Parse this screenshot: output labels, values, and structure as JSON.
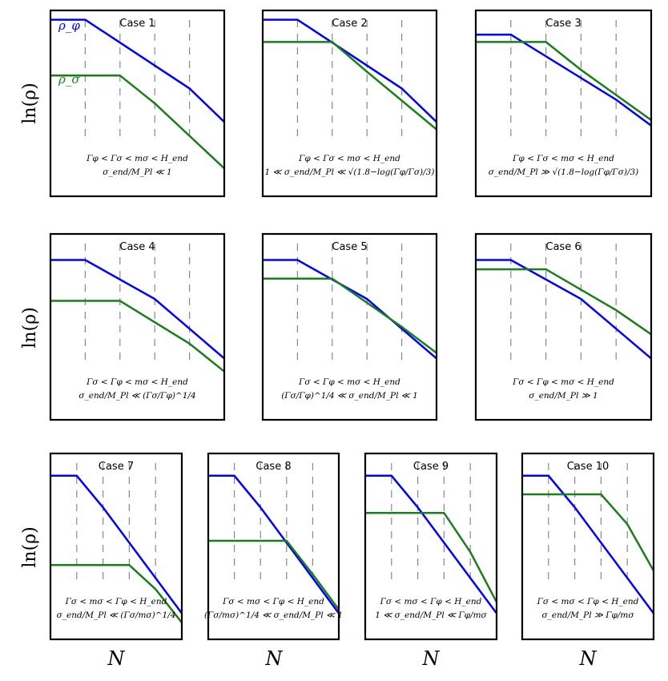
{
  "figure": {
    "y_axis_label": "ln(ρ)",
    "x_axis_label": "N",
    "series_colors": {
      "rho_phi": "#0000ff",
      "rho_sigma": "#1a7f1a"
    },
    "legend": {
      "rho_phi": "ρ_φ",
      "rho_sigma": "ρ_σ"
    }
  },
  "chart_data": [
    {
      "type": "line",
      "title": "Case 1",
      "xlim": [
        0,
        10
      ],
      "ylim": [
        0,
        10
      ],
      "dashed_x": [
        2,
        4,
        6,
        8
      ],
      "series": [
        {
          "name": "rho_phi",
          "x": [
            0,
            2,
            8,
            10
          ],
          "y": [
            9.5,
            9.5,
            5.8,
            4.0
          ]
        },
        {
          "name": "rho_sigma",
          "x": [
            0,
            4,
            6,
            10
          ],
          "y": [
            6.5,
            6.5,
            5.0,
            1.5
          ]
        }
      ],
      "condition_lines": [
        "Γφ < Γσ < mσ < H_end",
        "σ_end/M_Pl ≪ 1"
      ]
    },
    {
      "type": "line",
      "title": "Case 2",
      "xlim": [
        0,
        10
      ],
      "ylim": [
        0,
        10
      ],
      "dashed_x": [
        2,
        4,
        6,
        8
      ],
      "series": [
        {
          "name": "rho_phi",
          "x": [
            0,
            2,
            8,
            10
          ],
          "y": [
            9.5,
            9.5,
            5.8,
            4.0
          ]
        },
        {
          "name": "rho_sigma",
          "x": [
            0,
            4,
            6,
            10
          ],
          "y": [
            8.3,
            8.3,
            6.7,
            3.6
          ]
        }
      ],
      "condition_lines": [
        "Γφ < Γσ < mσ < H_end",
        "1 ≪ σ_end/M_Pl ≪ √(1.8−log(Γφ/Γσ)/3)"
      ]
    },
    {
      "type": "line",
      "title": "Case 3",
      "xlim": [
        0,
        10
      ],
      "ylim": [
        0,
        10
      ],
      "dashed_x": [
        2,
        4,
        6,
        8
      ],
      "series": [
        {
          "name": "rho_phi",
          "x": [
            0,
            2,
            8,
            10
          ],
          "y": [
            8.7,
            8.7,
            5.2,
            3.8
          ]
        },
        {
          "name": "rho_sigma",
          "x": [
            0,
            4,
            6,
            10
          ],
          "y": [
            8.3,
            8.3,
            6.8,
            4.1
          ]
        }
      ],
      "condition_lines": [
        "Γφ < Γσ < mσ < H_end",
        "σ_end/M_Pl ≫ √(1.8−log(Γφ/Γσ)/3)"
      ]
    },
    {
      "type": "line",
      "title": "Case 4",
      "xlim": [
        0,
        10
      ],
      "ylim": [
        0,
        10
      ],
      "dashed_x": [
        2,
        4,
        6,
        8
      ],
      "series": [
        {
          "name": "rho_phi",
          "x": [
            0,
            2,
            6,
            10
          ],
          "y": [
            8.6,
            8.6,
            6.5,
            3.3
          ]
        },
        {
          "name": "rho_sigma",
          "x": [
            0,
            4,
            8,
            10
          ],
          "y": [
            6.4,
            6.4,
            4.1,
            2.6
          ]
        }
      ],
      "condition_lines": [
        "Γσ < Γφ < mσ < H_end",
        "σ_end/M_Pl ≪ (Γσ/Γφ)^1/4"
      ]
    },
    {
      "type": "line",
      "title": "Case 5",
      "xlim": [
        0,
        10
      ],
      "ylim": [
        0,
        10
      ],
      "dashed_x": [
        2,
        4,
        6,
        8
      ],
      "series": [
        {
          "name": "rho_phi",
          "x": [
            0,
            2,
            6,
            10
          ],
          "y": [
            8.6,
            8.6,
            6.5,
            3.3
          ]
        },
        {
          "name": "rho_sigma",
          "x": [
            0,
            4,
            8,
            10
          ],
          "y": [
            7.6,
            7.6,
            5.0,
            3.6
          ]
        }
      ],
      "condition_lines": [
        "Γσ < Γφ < mσ < H_end",
        "(Γσ/Γφ)^1/4 ≪ σ_end/M_Pl ≪ 1"
      ]
    },
    {
      "type": "line",
      "title": "Case 6",
      "xlim": [
        0,
        10
      ],
      "ylim": [
        0,
        10
      ],
      "dashed_x": [
        2,
        4,
        6,
        8
      ],
      "series": [
        {
          "name": "rho_phi",
          "x": [
            0,
            2,
            6,
            10
          ],
          "y": [
            8.6,
            8.6,
            6.5,
            3.3
          ]
        },
        {
          "name": "rho_sigma",
          "x": [
            0,
            4,
            8,
            10
          ],
          "y": [
            8.1,
            8.1,
            5.9,
            4.6
          ]
        }
      ],
      "condition_lines": [
        "Γσ < Γφ < mσ < H_end",
        "σ_end/M_Pl ≫ 1"
      ]
    },
    {
      "type": "line",
      "title": "Case 7",
      "xlim": [
        0,
        10
      ],
      "ylim": [
        0,
        10
      ],
      "dashed_x": [
        2,
        4,
        6,
        8
      ],
      "series": [
        {
          "name": "rho_phi",
          "x": [
            0,
            2,
            4,
            10
          ],
          "y": [
            8.8,
            8.8,
            7.1,
            1.4
          ]
        },
        {
          "name": "rho_sigma",
          "x": [
            0,
            6,
            8,
            10
          ],
          "y": [
            4.0,
            4.0,
            2.7,
            0.9
          ]
        }
      ],
      "condition_lines": [
        "Γσ < mσ < Γφ < H_end",
        "σ_end/M_Pl ≪ (Γσ/mσ)^1/4"
      ]
    },
    {
      "type": "line",
      "title": "Case 8",
      "xlim": [
        0,
        10
      ],
      "ylim": [
        0,
        10
      ],
      "dashed_x": [
        2,
        4,
        6,
        8
      ],
      "series": [
        {
          "name": "rho_phi",
          "x": [
            0,
            2,
            4,
            10
          ],
          "y": [
            8.8,
            8.8,
            7.1,
            1.4
          ]
        },
        {
          "name": "rho_sigma",
          "x": [
            0,
            6,
            8,
            10
          ],
          "y": [
            5.3,
            5.3,
            3.5,
            1.6
          ]
        }
      ],
      "condition_lines": [
        "Γσ < mσ < Γφ < H_end",
        "(Γσ/mσ)^1/4 ≪ σ_end/M_Pl ≪ 1"
      ]
    },
    {
      "type": "line",
      "title": "Case 9",
      "xlim": [
        0,
        10
      ],
      "ylim": [
        0,
        10
      ],
      "dashed_x": [
        2,
        4,
        6,
        8
      ],
      "series": [
        {
          "name": "rho_phi",
          "x": [
            0,
            2,
            4,
            10
          ],
          "y": [
            8.8,
            8.8,
            7.1,
            1.4
          ]
        },
        {
          "name": "rho_sigma",
          "x": [
            0,
            6,
            8,
            10
          ],
          "y": [
            6.8,
            6.8,
            4.7,
            2.0
          ]
        }
      ],
      "condition_lines": [
        "Γσ < mσ < Γφ < H_end",
        "1 ≪ σ_end/M_Pl ≪ Γφ/mσ"
      ]
    },
    {
      "type": "line",
      "title": "Case 10",
      "xlim": [
        0,
        10
      ],
      "ylim": [
        0,
        10
      ],
      "dashed_x": [
        2,
        4,
        6,
        8
      ],
      "series": [
        {
          "name": "rho_phi",
          "x": [
            0,
            2,
            4,
            10
          ],
          "y": [
            8.8,
            8.8,
            7.1,
            1.4
          ]
        },
        {
          "name": "rho_sigma",
          "x": [
            0,
            6,
            8,
            10
          ],
          "y": [
            7.8,
            7.8,
            6.2,
            3.7
          ]
        }
      ],
      "condition_lines": [
        "Γσ < mσ < Γφ < H_end",
        "σ_end/M_Pl ≫ Γφ/mσ"
      ]
    }
  ]
}
